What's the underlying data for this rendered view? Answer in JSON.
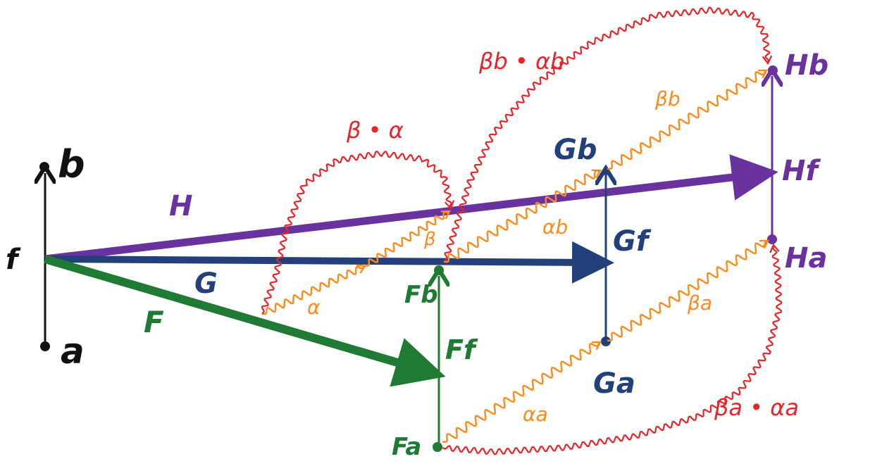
{
  "colors": {
    "black": "#111111",
    "purple": "#6a329f",
    "navy": "#23407a",
    "green": "#1f7a34",
    "orange": "#ff8a1c",
    "red": "#e8242a"
  },
  "labels": {
    "b": "b",
    "f": "f",
    "a": "a",
    "H": "H",
    "G": "G",
    "F": "F",
    "Hb": "Hb",
    "Hf": "Hf",
    "Ha": "Ha",
    "Gb": "Gb",
    "Gf": "Gf",
    "Ga": "Ga",
    "Fb": "Fb",
    "Ff": "Ff",
    "Fa": "Fa",
    "alpha": "α",
    "beta": "β",
    "alpha_b": "αb",
    "beta_b": "βb",
    "alpha_a": "αa",
    "beta_a": "βa",
    "beta_dot_alpha": "β • α",
    "beta_b_dot_alpha_b": "βb • αb",
    "beta_a_dot_alpha_a": "βa • αa"
  }
}
